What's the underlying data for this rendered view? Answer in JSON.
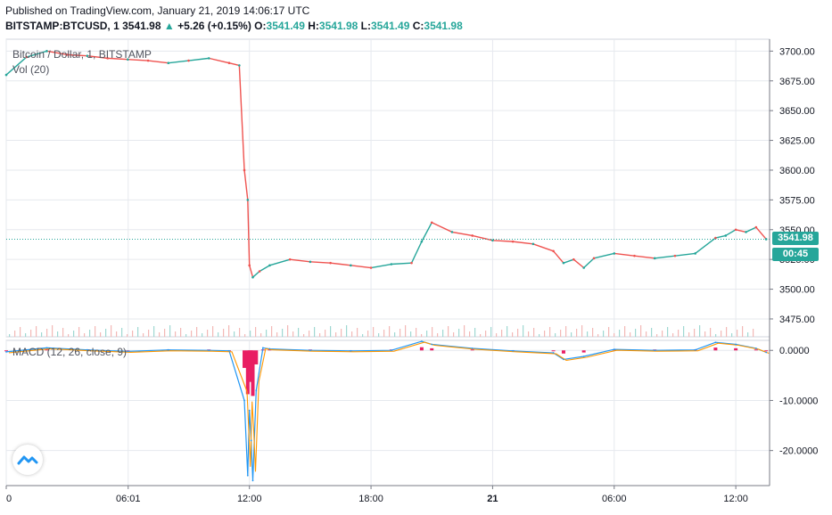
{
  "header": {
    "published": "Published on TradingView.com, January 21, 2019 14:06:17 UTC",
    "symbol": "BITSTAMP:BTCUSD, 1",
    "last": "3541.98",
    "change": "+5.26 (+0.15%)",
    "o_label": "O:",
    "o": "3541.49",
    "h_label": "H:",
    "h": "3541.98",
    "l_label": "L:",
    "l": "3541.49",
    "c_label": "C:",
    "c": "3541.98"
  },
  "price_pane": {
    "legend_title": "Bitcoin / Dollar, 1, BITSTAMP",
    "legend_volume": "Vol (20)",
    "last_price_tag": "3541.98",
    "countdown_tag": "00:45"
  },
  "macd_pane": {
    "legend": "MACD (12, 26, close, 9)"
  },
  "colors": {
    "up": "#26a69a",
    "down": "#ef5350",
    "macd": "#2196f3",
    "signal": "#ff9800",
    "histogram": "#e91e63",
    "grid": "#e6e9ee"
  },
  "chart_data": [
    {
      "type": "line",
      "pane": "price",
      "series": [
        {
          "x": [
            "00:00",
            "01:00",
            "02:00",
            "03:00",
            "04:00",
            "05:00",
            "06:00",
            "07:00",
            "08:00",
            "09:00",
            "10:00",
            "11:00",
            "11:30",
            "11:45",
            "11:55",
            "12:00",
            "12:10",
            "12:30",
            "13:00",
            "14:00",
            "15:00",
            "16:00",
            "17:00",
            "18:00",
            "19:00",
            "20:00",
            "20:30",
            "21:00",
            "22:00",
            "23:00",
            "00:00",
            "01:00",
            "02:00",
            "03:00",
            "03:30",
            "04:00",
            "04:30",
            "05:00",
            "06:00",
            "07:00",
            "08:00",
            "09:00",
            "10:00",
            "11:00",
            "11:30",
            "12:00",
            "12:30",
            "13:00",
            "13:30"
          ],
          "values": [
            3680,
            3695,
            3700,
            3697,
            3696,
            3694,
            3693,
            3692,
            3690,
            3692,
            3694,
            3690,
            3688,
            3600,
            3575,
            3520,
            3510,
            3515,
            3520,
            3525,
            3523,
            3522,
            3520,
            3518,
            3521,
            3522,
            3540,
            3556,
            3548,
            3545,
            3541,
            3540,
            3538,
            3532,
            3522,
            3525,
            3518,
            3526,
            3530,
            3528,
            3526,
            3528,
            3530,
            3543,
            3545,
            3550,
            3548,
            3552,
            3542
          ]
        }
      ],
      "y_ticks": [
        3475,
        3500,
        3525,
        3550,
        3575,
        3600,
        3625,
        3650,
        3675,
        3700
      ],
      "ylim": [
        3460,
        3710
      ],
      "grid": true
    },
    {
      "type": "line",
      "pane": "macd",
      "series": [
        {
          "x": [
            "00:00",
            "02:00",
            "04:00",
            "06:00",
            "08:00",
            "10:00",
            "11:00",
            "11:45",
            "11:55",
            "12:00",
            "12:05",
            "12:10",
            "12:20",
            "12:40",
            "13:00",
            "15:00",
            "17:00",
            "19:00",
            "20:30",
            "21:00",
            "23:00",
            "01:00",
            "03:00",
            "03:30",
            "04:30",
            "06:00",
            "08:00",
            "10:00",
            "11:00",
            "12:00",
            "13:00",
            "13:30"
          ],
          "values": [
            -0.3,
            0.5,
            0.1,
            -0.2,
            0.1,
            0.0,
            -0.1,
            -10,
            -25,
            -12,
            -18,
            -26,
            -8,
            0.5,
            0.3,
            0.0,
            -0.1,
            0.0,
            1.8,
            1.2,
            0.4,
            -0.1,
            -0.5,
            -1.8,
            -1.2,
            0.2,
            0.0,
            0.1,
            1.6,
            1.2,
            0.4,
            -0.4
          ]
        }
      ],
      "y_ticks": [
        -20,
        -10,
        0
      ],
      "ylim": [
        -27,
        2
      ],
      "grid": true
    }
  ],
  "x_axis": {
    "ticks": [
      "0",
      "06:01",
      "12:00",
      "18:00",
      "21",
      "06:00",
      "12:00"
    ]
  },
  "price_axis_ticks": [
    "3475.00",
    "3500.00",
    "3525.00",
    "3550.00",
    "3575.00",
    "3600.00",
    "3625.00",
    "3650.00",
    "3675.00",
    "3700.00"
  ],
  "macd_axis_ticks": [
    "-20.0000",
    "-10.0000",
    "0.0000"
  ]
}
